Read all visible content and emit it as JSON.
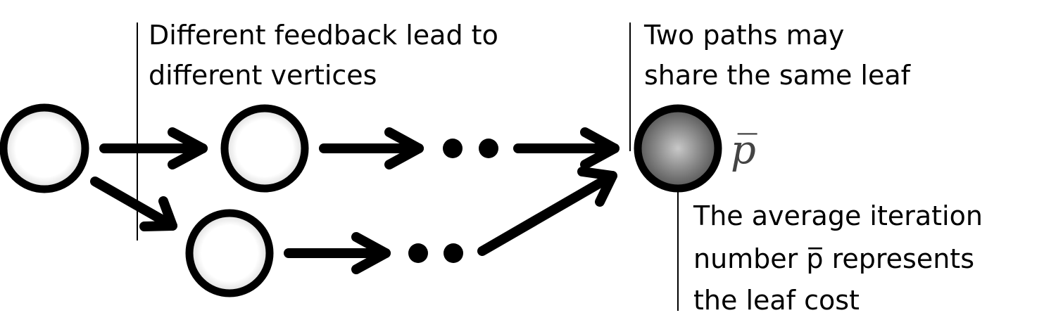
{
  "annotations": {
    "feedback": [
      "Different feedback lead to",
      "different vertices"
    ],
    "paths": [
      "Two paths may",
      "share the same leaf"
    ],
    "cost": [
      "The average iteration",
      "number p̅ represents",
      "the leaf cost"
    ]
  },
  "leaf_symbol": "p̅",
  "colors": {
    "stroke": "#000000",
    "node_fill_center": "#ffffff",
    "node_fill_edge": "#d9d9d9",
    "leaf_fill_center": "#c8c8c8",
    "leaf_fill_edge": "#555555"
  }
}
